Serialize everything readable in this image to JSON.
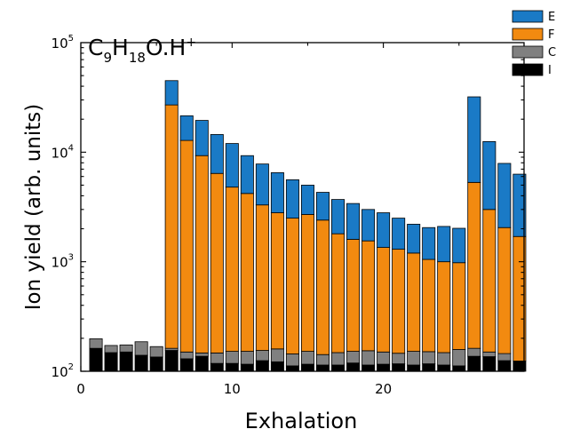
{
  "chart_data": {
    "type": "bar",
    "stacked": true,
    "title": "C9H18O.H+",
    "title_parts": {
      "base": "C",
      "sub1": "9",
      "mid": "H",
      "sub2": "18",
      "tail": "O.H",
      "sup": "+"
    },
    "xlabel": "Exhalation",
    "ylabel": "Ion yield (arb. units)",
    "xlim": [
      0,
      29.3
    ],
    "ylim": [
      100,
      100000
    ],
    "yscale": "log",
    "x_ticks": [
      0,
      10,
      20
    ],
    "x_tick_labels": [
      "0",
      "10",
      "20"
    ],
    "y_ticks": [
      100,
      1000,
      10000,
      100000
    ],
    "y_tick_labels": [
      {
        "base": "10",
        "exp": "2"
      },
      {
        "base": "10",
        "exp": "3"
      },
      {
        "base": "10",
        "exp": "4"
      },
      {
        "base": "10",
        "exp": "5"
      }
    ],
    "legend_position": "top-right",
    "series": [
      {
        "name": "I",
        "color": "#000000"
      },
      {
        "name": "C",
        "color": "#808080"
      },
      {
        "name": "F",
        "color": "#f28a10"
      },
      {
        "name": "E",
        "color": "#1a7ac6"
      }
    ],
    "x": [
      1,
      2,
      3,
      4,
      5,
      6,
      7,
      8,
      9,
      10,
      11,
      12,
      13,
      14,
      15,
      16,
      17,
      18,
      19,
      20,
      21,
      22,
      23,
      24,
      25,
      26,
      27,
      28,
      29
    ],
    "cumulative_totals": {
      "I": [
        162,
        148,
        150,
        140,
        135,
        155,
        130,
        137,
        118,
        118,
        116,
        125,
        122,
        112,
        116,
        114,
        114,
        119,
        114,
        116,
        117,
        114,
        117,
        114,
        112,
        137,
        136,
        125,
        124
      ],
      "C": [
        198,
        172,
        174,
        186,
        168,
        162,
        150,
        147,
        147,
        152,
        152,
        155,
        160,
        144,
        152,
        142,
        148,
        152,
        154,
        150,
        146,
        152,
        151,
        148,
        158,
        162,
        150,
        145,
        124
      ],
      "F": [
        198,
        172,
        174,
        186,
        168,
        27000,
        12800,
        9300,
        6400,
        4800,
        4200,
        3300,
        2800,
        2500,
        2700,
        2400,
        1800,
        1600,
        1550,
        1350,
        1300,
        1200,
        1050,
        1000,
        980,
        5300,
        3000,
        2050,
        1700
      ],
      "E": [
        198,
        172,
        174,
        186,
        168,
        45000,
        21500,
        19500,
        14500,
        12000,
        9300,
        7800,
        6500,
        5600,
        5000,
        4300,
        3700,
        3400,
        3000,
        2800,
        2500,
        2200,
        2050,
        2100,
        2020,
        32000,
        12500,
        7900,
        6300
      ]
    }
  }
}
